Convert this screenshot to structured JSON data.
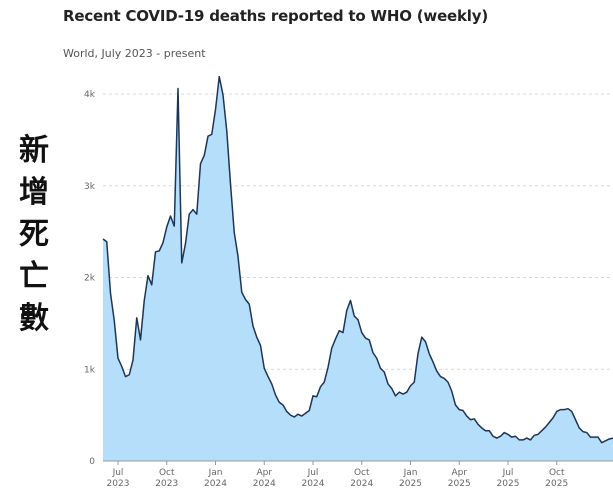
{
  "chart_data": {
    "type": "area",
    "title": "Recent COVID-19 deaths reported to WHO (weekly)",
    "subtitle": "World, July 2023 - present",
    "ylabel": "新增死亡數",
    "xlabel": "",
    "ylim": [
      0,
      4000
    ],
    "yticks": [
      {
        "value": 0,
        "label": "0"
      },
      {
        "value": 1000,
        "label": "1k"
      },
      {
        "value": 2000,
        "label": "2k"
      },
      {
        "value": 3000,
        "label": "3k"
      },
      {
        "value": 4000,
        "label": "4k"
      }
    ],
    "xticks": [
      {
        "x": 4,
        "month": "Jul",
        "year": "2023"
      },
      {
        "x": 17,
        "month": "Oct",
        "year": "2023"
      },
      {
        "x": 30,
        "month": "Jan",
        "year": "2024"
      },
      {
        "x": 43,
        "month": "Apr",
        "year": "2024"
      },
      {
        "x": 56,
        "month": "Jul",
        "year": "2024"
      },
      {
        "x": 69,
        "month": "Oct",
        "year": "2024"
      },
      {
        "x": 82,
        "month": "Jan",
        "year": "2025"
      },
      {
        "x": 95,
        "month": "Apr",
        "year": "2025"
      },
      {
        "x": 108,
        "month": "Jul",
        "year": "2025"
      },
      {
        "x": 121,
        "month": "Oct",
        "year": "2025"
      }
    ],
    "grid": true,
    "fill_color": "#b4defa",
    "line_color": "#1d3557",
    "x": [
      0,
      1,
      2,
      3,
      4,
      5,
      6,
      7,
      8,
      9,
      10,
      11,
      12,
      13,
      14,
      15,
      16,
      17,
      18,
      19,
      20,
      21,
      22,
      23,
      24,
      25,
      26,
      27,
      28,
      29,
      30,
      31,
      32,
      33,
      34,
      35,
      36,
      37,
      38,
      39,
      40,
      41,
      42,
      43,
      44,
      45,
      46,
      47,
      48,
      49,
      50,
      51,
      52,
      53,
      54,
      55,
      56,
      57,
      58,
      59,
      60,
      61,
      62,
      63,
      64,
      65,
      66,
      67,
      68,
      69,
      70,
      71,
      72,
      73,
      74,
      75,
      76,
      77,
      78,
      79,
      80,
      81,
      82,
      83,
      84,
      85,
      86,
      87,
      88,
      89,
      90,
      91,
      92,
      93,
      94,
      95,
      96,
      97,
      98,
      99,
      100,
      101,
      102,
      103,
      104,
      105,
      106,
      107,
      108,
      109,
      110,
      111,
      112,
      113,
      114,
      115,
      116,
      117,
      118,
      119,
      120,
      121,
      122,
      123,
      124,
      125,
      126,
      127,
      128,
      129,
      130,
      131,
      132,
      133,
      134,
      135,
      136
    ],
    "values": [
      2420,
      2390,
      1830,
      1530,
      1120,
      1030,
      920,
      940,
      1100,
      1560,
      1320,
      1750,
      2020,
      1920,
      2280,
      2290,
      2380,
      2550,
      2670,
      2560,
      4060,
      2160,
      2370,
      2690,
      2740,
      2690,
      3240,
      3330,
      3540,
      3560,
      3830,
      4190,
      3990,
      3600,
      3020,
      2490,
      2230,
      1840,
      1760,
      1710,
      1470,
      1350,
      1260,
      1010,
      920,
      840,
      720,
      640,
      610,
      540,
      500,
      480,
      510,
      490,
      520,
      550,
      710,
      700,
      810,
      860,
      1020,
      1230,
      1330,
      1420,
      1400,
      1640,
      1750,
      1580,
      1540,
      1400,
      1340,
      1320,
      1180,
      1120,
      1010,
      970,
      840,
      790,
      710,
      750,
      730,
      750,
      820,
      860,
      1170,
      1350,
      1300,
      1170,
      1080,
      980,
      920,
      900,
      860,
      760,
      610,
      560,
      550,
      490,
      450,
      460,
      400,
      360,
      330,
      330,
      270,
      250,
      270,
      310,
      290,
      260,
      270,
      230,
      230,
      250,
      230,
      280,
      290,
      330,
      370,
      420,
      470,
      540,
      560,
      560,
      570,
      540,
      450,
      360,
      320,
      310,
      260,
      260,
      260,
      200,
      220,
      240,
      250
    ]
  }
}
